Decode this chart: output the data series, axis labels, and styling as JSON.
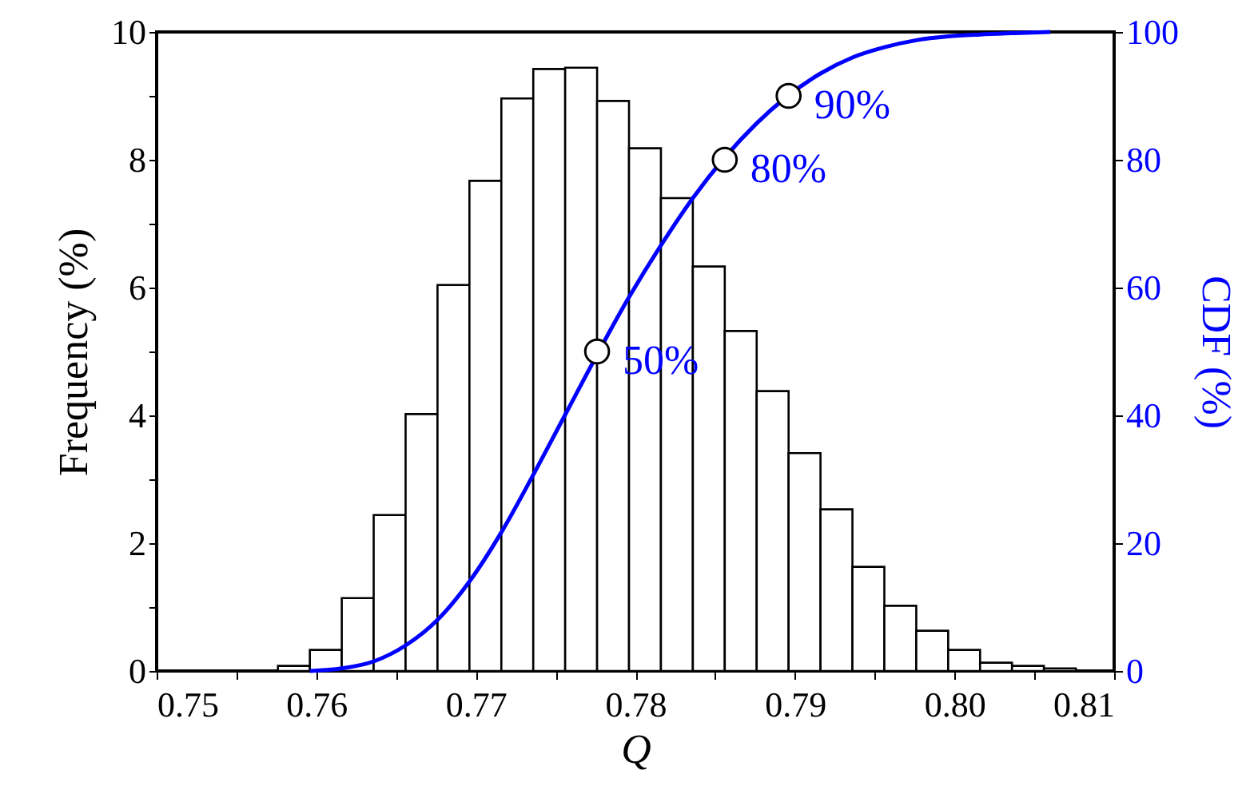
{
  "chart_data": {
    "type": "histogram",
    "xlabel": "Q",
    "ylabel": "Frequency (%)",
    "y2label": "CDF (%)",
    "grid": false,
    "xlim": [
      0.75,
      0.81
    ],
    "xticks": [
      0.75,
      {
        "value": 0.755,
        "label": null
      },
      0.76,
      {
        "value": 0.765,
        "label": null
      },
      0.77,
      {
        "value": 0.775,
        "label": null
      },
      0.78,
      {
        "value": 0.785,
        "label": null
      },
      0.79,
      {
        "value": 0.795,
        "label": null
      },
      {
        "value": 0.8,
        "label": "0.80"
      },
      {
        "value": 0.805,
        "label": null
      },
      0.81
    ],
    "ylim": [
      0,
      10
    ],
    "yticks": [
      0,
      {
        "value": 1,
        "label": null
      },
      2,
      {
        "value": 3,
        "label": null
      },
      4,
      {
        "value": 5,
        "label": null
      },
      6,
      {
        "value": 7,
        "label": null
      },
      8,
      {
        "value": 9,
        "label": null
      },
      10
    ],
    "y2lim": [
      0,
      100
    ],
    "y2ticks": [
      0,
      {
        "value": 10,
        "label": null
      },
      20,
      {
        "value": 30,
        "label": null
      },
      40,
      {
        "value": 50,
        "label": null
      },
      60,
      {
        "value": 70,
        "label": null
      },
      80,
      {
        "value": 90,
        "label": null
      },
      100
    ],
    "series": [
      {
        "color": "#ffffff",
        "bins": [
          0.7576,
          0.7596,
          0.7616,
          0.7636,
          0.7656,
          0.7676,
          0.7696,
          0.7716,
          0.7736,
          0.7756,
          0.7776,
          0.7796,
          0.7816,
          0.7836,
          0.7856,
          0.7876,
          0.7896,
          0.7916,
          0.7936,
          0.7956,
          0.7976,
          0.7996,
          0.8016,
          0.8036,
          0.8056,
          0.8076
        ],
        "values": [
          0.08,
          0.33,
          1.14,
          2.44,
          4.02,
          6.04,
          7.67,
          8.96,
          9.42,
          9.44,
          8.92,
          8.18,
          7.4,
          6.33,
          5.32,
          4.38,
          3.41,
          2.53,
          1.63,
          1.02,
          0.63,
          0.33,
          0.13,
          0.08,
          0.04
        ]
      },
      {
        "type": "line",
        "axis": "y2",
        "color": "#0000ff",
        "x": [
          0.7596,
          0.7616,
          0.7636,
          0.7656,
          0.7676,
          0.7696,
          0.7716,
          0.7736,
          0.7756,
          0.7796,
          0.7816,
          0.7836,
          0.7876,
          0.7916,
          0.7936,
          0.7956,
          0.7976,
          0.7996,
          0.8016,
          0.8036,
          0.806
        ],
        "values": [
          0,
          0.4,
          1.5,
          4,
          8,
          14,
          21.7,
          30.7,
          40.1,
          58.5,
          66.6,
          74,
          85.7,
          93.5,
          96,
          97.6,
          98.7,
          99.3,
          99.6,
          99.8,
          100
        ]
      },
      {
        "type": "scatter",
        "axis": "y2",
        "color": "#000000",
        "marker": "circle",
        "x": [
          0.7776,
          0.7856,
          0.7896
        ],
        "values": [
          50,
          80,
          90
        ],
        "value_labels": [
          "50%",
          "80%",
          "90%"
        ]
      }
    ]
  }
}
